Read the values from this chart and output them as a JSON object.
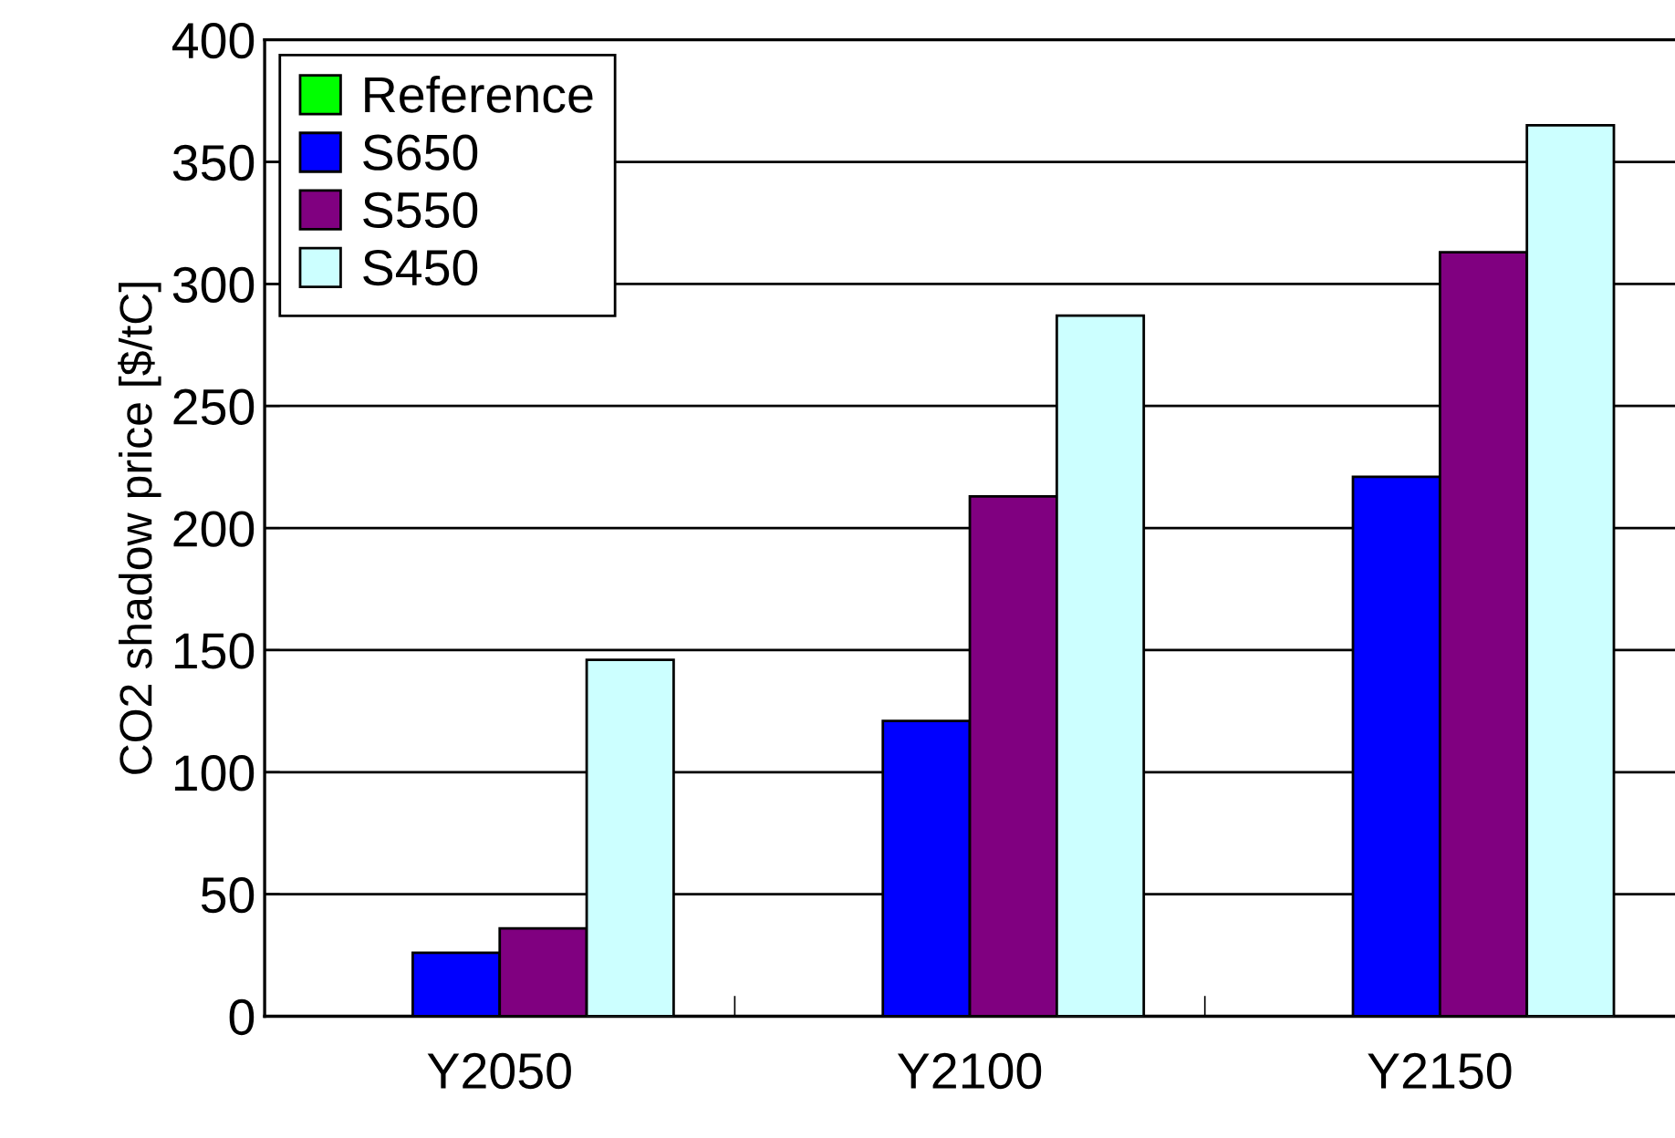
{
  "chart_data": {
    "type": "bar",
    "ylabel": "CO2 shadow price [$/tC]",
    "categories": [
      "Y2050",
      "Y2100",
      "Y2150"
    ],
    "series": [
      {
        "name": "Reference",
        "color": "#00ff00",
        "values": [
          null,
          null,
          null
        ]
      },
      {
        "name": "S650",
        "color": "#0000ff",
        "values": [
          26,
          121,
          221
        ]
      },
      {
        "name": "S550",
        "color": "#800080",
        "values": [
          36,
          213,
          313
        ]
      },
      {
        "name": "S450",
        "color": "#ccffff",
        "values": [
          146,
          287,
          365
        ]
      }
    ],
    "ylim": [
      0,
      400
    ],
    "yticks": [
      0,
      50,
      100,
      150,
      200,
      250,
      300,
      350,
      400
    ],
    "grid": "y",
    "legend": "top left"
  }
}
